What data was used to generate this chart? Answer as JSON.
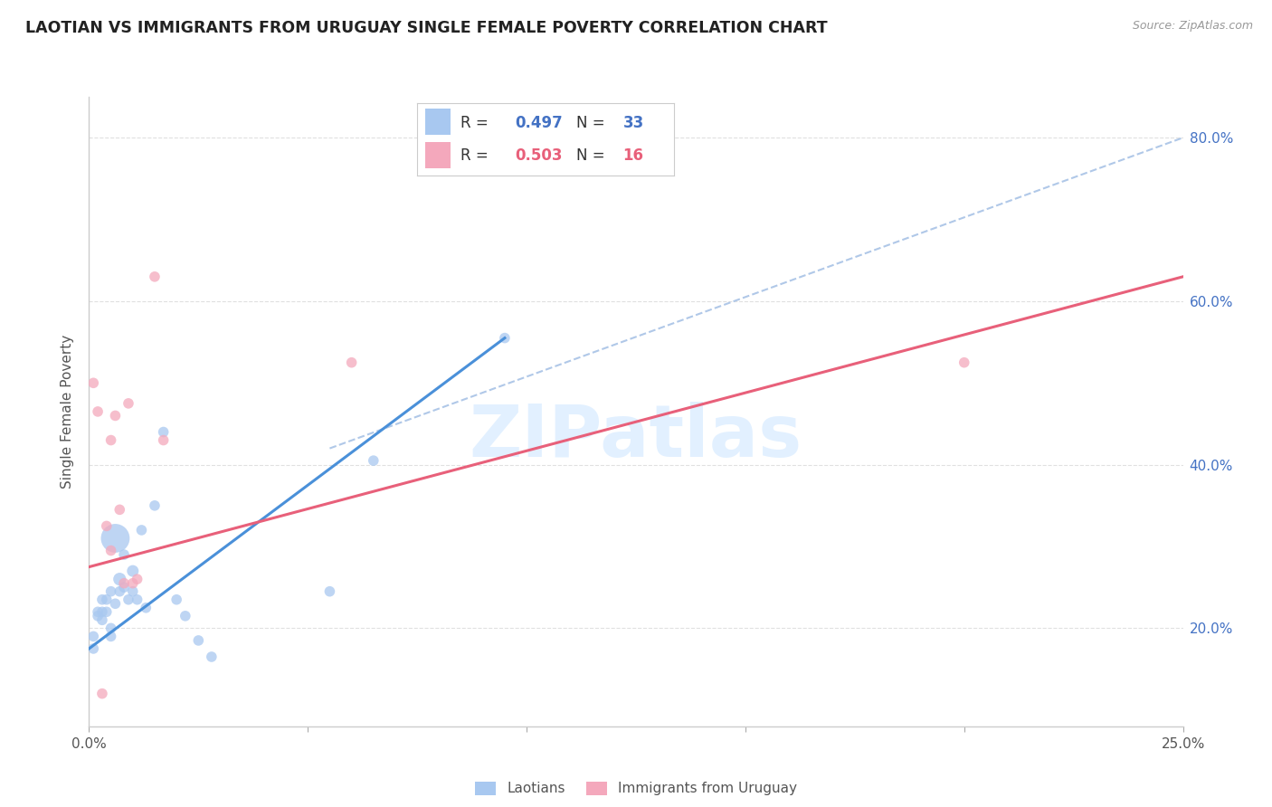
{
  "title": "LAOTIAN VS IMMIGRANTS FROM URUGUAY SINGLE FEMALE POVERTY CORRELATION CHART",
  "source": "Source: ZipAtlas.com",
  "ylabel": "Single Female Poverty",
  "xlim": [
    0.0,
    0.25
  ],
  "ylim": [
    0.08,
    0.85
  ],
  "yticks": [
    0.2,
    0.4,
    0.6,
    0.8
  ],
  "xticks": [
    0.0,
    0.05,
    0.1,
    0.15,
    0.2,
    0.25
  ],
  "xtick_labels": [
    "0.0%",
    "",
    "",
    "",
    "",
    "25.0%"
  ],
  "ytick_labels": [
    "20.0%",
    "40.0%",
    "60.0%",
    "80.0%"
  ],
  "legend_r_blue": "0.497",
  "legend_n_blue": "33",
  "legend_r_pink": "0.503",
  "legend_n_pink": "16",
  "legend_label_blue": "Laotians",
  "legend_label_pink": "Immigrants from Uruguay",
  "blue_color": "#a8c8f0",
  "pink_color": "#f4a8bc",
  "line_blue_color": "#4a90d9",
  "line_pink_color": "#e8607a",
  "watermark_text": "ZIPatlas",
  "laotian_x": [
    0.001,
    0.001,
    0.002,
    0.002,
    0.003,
    0.003,
    0.003,
    0.004,
    0.004,
    0.005,
    0.005,
    0.005,
    0.006,
    0.006,
    0.007,
    0.007,
    0.008,
    0.008,
    0.009,
    0.01,
    0.01,
    0.011,
    0.012,
    0.013,
    0.015,
    0.017,
    0.02,
    0.022,
    0.025,
    0.028,
    0.055,
    0.065,
    0.095
  ],
  "laotian_y": [
    0.19,
    0.175,
    0.22,
    0.215,
    0.21,
    0.22,
    0.235,
    0.22,
    0.235,
    0.2,
    0.19,
    0.245,
    0.23,
    0.31,
    0.245,
    0.26,
    0.25,
    0.29,
    0.235,
    0.245,
    0.27,
    0.235,
    0.32,
    0.225,
    0.35,
    0.44,
    0.235,
    0.215,
    0.185,
    0.165,
    0.245,
    0.405,
    0.555
  ],
  "laotian_size": [
    20,
    20,
    20,
    20,
    20,
    20,
    20,
    20,
    20,
    20,
    20,
    20,
    20,
    150,
    20,
    30,
    20,
    20,
    20,
    20,
    25,
    20,
    20,
    20,
    20,
    20,
    20,
    20,
    20,
    20,
    20,
    20,
    20
  ],
  "uruguay_x": [
    0.001,
    0.002,
    0.003,
    0.004,
    0.005,
    0.005,
    0.006,
    0.007,
    0.008,
    0.009,
    0.01,
    0.011,
    0.015,
    0.017,
    0.06,
    0.2
  ],
  "uruguay_y": [
    0.5,
    0.465,
    0.12,
    0.325,
    0.295,
    0.43,
    0.46,
    0.345,
    0.255,
    0.475,
    0.255,
    0.26,
    0.63,
    0.43,
    0.525,
    0.525
  ],
  "uruguay_size": [
    20,
    20,
    20,
    20,
    20,
    20,
    20,
    20,
    20,
    20,
    20,
    20,
    20,
    20,
    20,
    20
  ],
  "blue_line_x": [
    0.0,
    0.095
  ],
  "blue_line_y": [
    0.175,
    0.555
  ],
  "pink_line_x": [
    0.0,
    0.25
  ],
  "pink_line_y": [
    0.275,
    0.63
  ],
  "dash_line_x": [
    0.055,
    0.25
  ],
  "dash_line_y": [
    0.42,
    0.8
  ],
  "background_color": "#ffffff",
  "grid_color": "#e0e0e0"
}
